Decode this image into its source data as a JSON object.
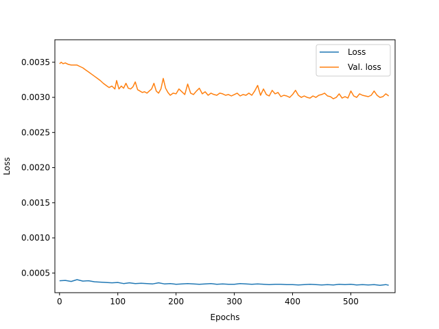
{
  "chart_data": {
    "type": "line",
    "title": "",
    "xlabel": "Epochs",
    "ylabel": "Loss",
    "xlim": [
      -8,
      576
    ],
    "ylim": [
      0.00022,
      0.00382
    ],
    "xticks": [
      0,
      100,
      200,
      300,
      400,
      500
    ],
    "xtick_labels": [
      "0",
      "100",
      "200",
      "300",
      "400",
      "500"
    ],
    "yticks": [
      0.0005,
      0.001,
      0.0015,
      0.002,
      0.0025,
      0.003,
      0.0035
    ],
    "ytick_labels": [
      "0.0005",
      "0.0010",
      "0.0015",
      "0.0020",
      "0.0025",
      "0.0030",
      "0.0035"
    ],
    "grid": false,
    "legend_position": "top-right",
    "colors": {
      "loss": "#1f77b4",
      "val_loss": "#ff7f0e"
    },
    "series": [
      {
        "name": "Loss",
        "x": [
          0,
          10,
          20,
          30,
          40,
          50,
          60,
          70,
          80,
          90,
          100,
          110,
          120,
          130,
          140,
          150,
          160,
          170,
          180,
          190,
          200,
          210,
          220,
          230,
          240,
          250,
          260,
          270,
          280,
          290,
          300,
          310,
          320,
          330,
          340,
          350,
          360,
          370,
          380,
          390,
          400,
          410,
          420,
          430,
          440,
          450,
          460,
          470,
          480,
          490,
          500,
          510,
          520,
          530,
          540,
          550,
          560,
          565
        ],
        "values": [
          0.00039,
          0.000395,
          0.00038,
          0.000405,
          0.000385,
          0.00039,
          0.000375,
          0.00037,
          0.000365,
          0.00036,
          0.000365,
          0.00035,
          0.00036,
          0.00035,
          0.000355,
          0.00035,
          0.000345,
          0.00036,
          0.000345,
          0.00035,
          0.00034,
          0.000345,
          0.00035,
          0.000345,
          0.00034,
          0.000345,
          0.00035,
          0.00034,
          0.000345,
          0.00034,
          0.00034,
          0.00035,
          0.000345,
          0.00034,
          0.000345,
          0.00034,
          0.000335,
          0.00034,
          0.00034,
          0.000335,
          0.000335,
          0.00033,
          0.000335,
          0.00034,
          0.000335,
          0.00033,
          0.000335,
          0.00033,
          0.00034,
          0.000335,
          0.00034,
          0.00033,
          0.000335,
          0.00033,
          0.000335,
          0.000325,
          0.000335,
          0.000325
        ]
      },
      {
        "name": "Val. loss",
        "x": [
          0,
          3,
          6,
          10,
          15,
          20,
          25,
          30,
          35,
          40,
          45,
          50,
          55,
          60,
          65,
          70,
          75,
          80,
          85,
          90,
          95,
          98,
          102,
          106,
          110,
          114,
          118,
          122,
          126,
          130,
          134,
          138,
          142,
          146,
          150,
          154,
          158,
          162,
          166,
          170,
          174,
          178,
          182,
          186,
          190,
          195,
          200,
          205,
          210,
          215,
          220,
          225,
          230,
          235,
          240,
          245,
          250,
          255,
          260,
          265,
          270,
          275,
          280,
          285,
          290,
          295,
          300,
          305,
          310,
          315,
          320,
          325,
          330,
          335,
          340,
          345,
          350,
          355,
          360,
          365,
          370,
          375,
          380,
          385,
          390,
          395,
          400,
          405,
          410,
          415,
          420,
          425,
          430,
          435,
          440,
          445,
          450,
          455,
          460,
          465,
          470,
          475,
          480,
          485,
          490,
          495,
          500,
          505,
          510,
          515,
          520,
          525,
          530,
          535,
          540,
          545,
          550,
          555,
          560,
          565
        ],
        "values": [
          0.00348,
          0.0035,
          0.00348,
          0.00349,
          0.00347,
          0.00346,
          0.00346,
          0.00346,
          0.00344,
          0.00342,
          0.00339,
          0.00336,
          0.00333,
          0.0033,
          0.00327,
          0.00324,
          0.0032,
          0.00317,
          0.00314,
          0.00316,
          0.00312,
          0.00324,
          0.00312,
          0.00316,
          0.00313,
          0.0032,
          0.00313,
          0.00312,
          0.00315,
          0.00322,
          0.00311,
          0.00309,
          0.00307,
          0.00308,
          0.00306,
          0.00309,
          0.00312,
          0.0032,
          0.00309,
          0.00306,
          0.00312,
          0.00327,
          0.00313,
          0.00307,
          0.00303,
          0.00306,
          0.00305,
          0.00312,
          0.00308,
          0.00304,
          0.00319,
          0.00306,
          0.00304,
          0.00309,
          0.00313,
          0.00305,
          0.00308,
          0.00303,
          0.00306,
          0.00304,
          0.00303,
          0.00306,
          0.00305,
          0.00303,
          0.00304,
          0.00302,
          0.00304,
          0.00306,
          0.00302,
          0.00304,
          0.00303,
          0.00306,
          0.00303,
          0.00309,
          0.00317,
          0.00303,
          0.00312,
          0.00304,
          0.00302,
          0.0031,
          0.00305,
          0.00307,
          0.00301,
          0.00303,
          0.00302,
          0.003,
          0.00304,
          0.0031,
          0.00303,
          0.003,
          0.00302,
          0.003,
          0.00299,
          0.00302,
          0.003,
          0.00303,
          0.00304,
          0.00306,
          0.00302,
          0.00301,
          0.00298,
          0.003,
          0.00305,
          0.00299,
          0.00301,
          0.00299,
          0.00309,
          0.00302,
          0.003,
          0.00305,
          0.00303,
          0.00302,
          0.00301,
          0.00303,
          0.00309,
          0.00303,
          0.003,
          0.00301,
          0.00305,
          0.00302
        ]
      }
    ]
  }
}
